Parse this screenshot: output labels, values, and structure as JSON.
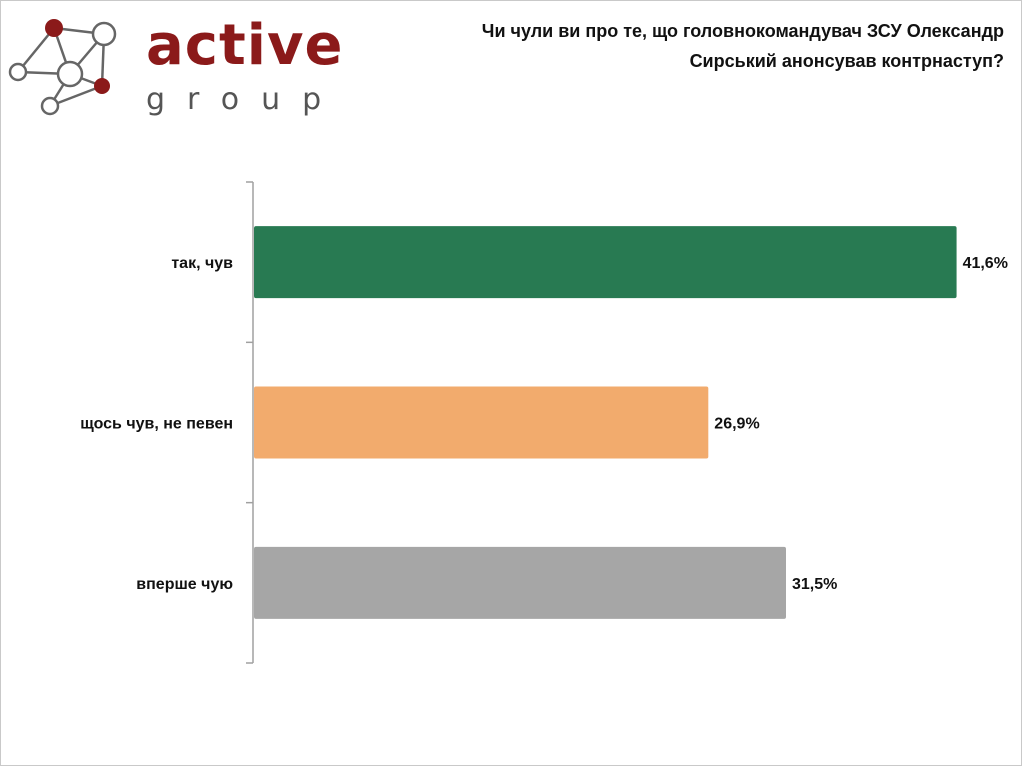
{
  "brand": {
    "name": "active",
    "sub": "group"
  },
  "chart_data": {
    "type": "bar",
    "orientation": "horizontal",
    "title": "Чи чули ви про те, що головнокомандувач ЗСУ Олександр Сирський анонсував контрнаступ?",
    "categories": [
      "так, чув",
      "щось чув, не певен",
      "вперше чую"
    ],
    "values": [
      41.6,
      26.9,
      31.5
    ],
    "value_labels": [
      "41,6%",
      "26,9%",
      "31,5%"
    ],
    "colors": [
      "#287a52",
      "#f2ab6d",
      "#a6a6a6"
    ],
    "xlim": [
      0,
      45
    ],
    "grid": false,
    "legend": "none"
  }
}
